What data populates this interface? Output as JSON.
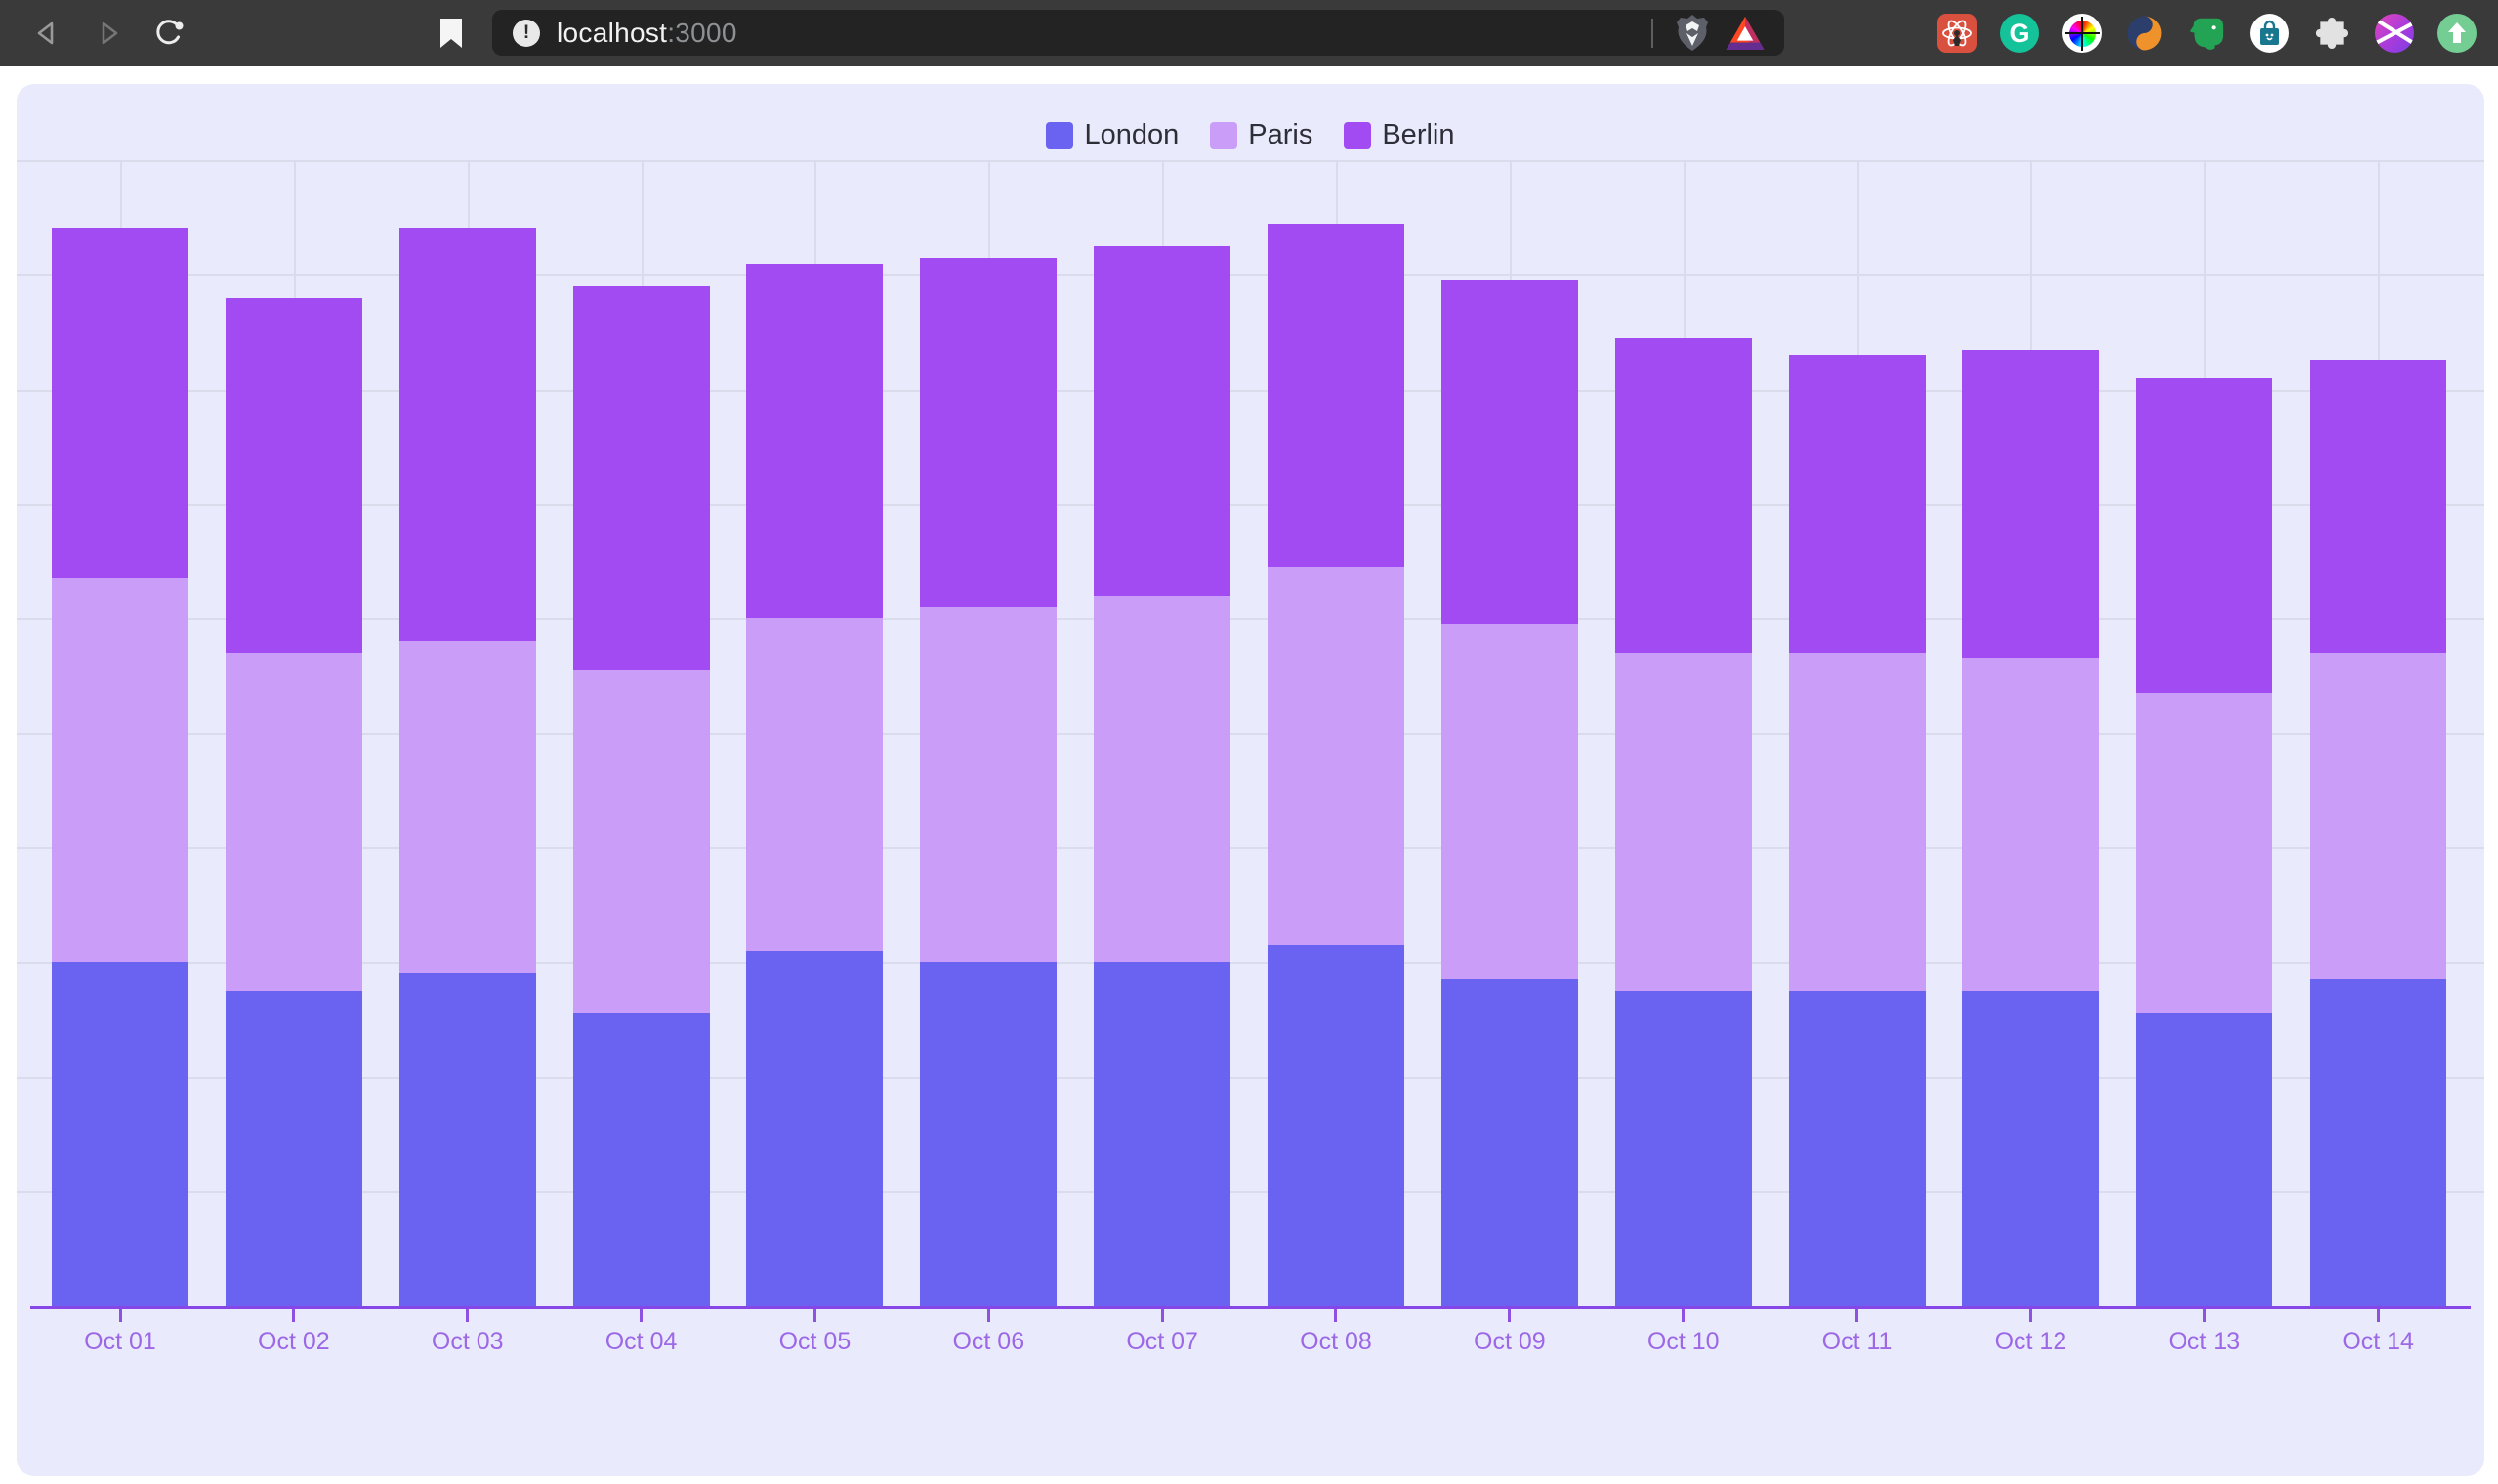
{
  "browser": {
    "url": {
      "host": "localhost",
      "port": ":3000"
    },
    "grammarly_letter": "G",
    "icons": {
      "toolbar": [
        "back-arrow",
        "forward-arrow",
        "reload",
        "bookmark",
        "site-info",
        "brave-shield",
        "bat-rewards"
      ],
      "extensions": [
        "react-devtools",
        "grammarly",
        "colorzilla",
        "navy-orange-swirl",
        "evernote-elephant",
        "shopping-bag",
        "puzzle-extensions",
        "gradient-x",
        "upload-arrow"
      ]
    }
  },
  "chart_data": {
    "type": "bar",
    "stacked": true,
    "title": "",
    "xlabel": "",
    "ylabel": "",
    "legend_position": "top",
    "grid": true,
    "ylim": [
      0,
      200
    ],
    "categories": [
      "Oct 01",
      "Oct 02",
      "Oct 03",
      "Oct 04",
      "Oct 05",
      "Oct 06",
      "Oct 07",
      "Oct 08",
      "Oct 09",
      "Oct 10",
      "Oct 11",
      "Oct 12",
      "Oct 13",
      "Oct 14"
    ],
    "series": [
      {
        "name": "London",
        "color": "#6a62f0",
        "values": [
          60,
          55,
          58,
          51,
          62,
          60,
          60,
          63,
          57,
          55,
          55,
          55,
          51,
          57
        ]
      },
      {
        "name": "Paris",
        "color": "#c99df8",
        "values": [
          67,
          59,
          58,
          60,
          58,
          62,
          64,
          66,
          62,
          59,
          59,
          58,
          56,
          57
        ]
      },
      {
        "name": "Berlin",
        "color": "#a24bf2",
        "values": [
          61,
          62,
          72,
          67,
          62,
          61,
          61,
          60,
          60,
          55,
          52,
          54,
          55,
          51
        ]
      }
    ],
    "colors": {
      "axis": "#8746e8",
      "tick": "#8e52e3",
      "x_label": "#9c68e6",
      "grid": "#dadcec",
      "card_bg": "#e9eafc"
    }
  }
}
